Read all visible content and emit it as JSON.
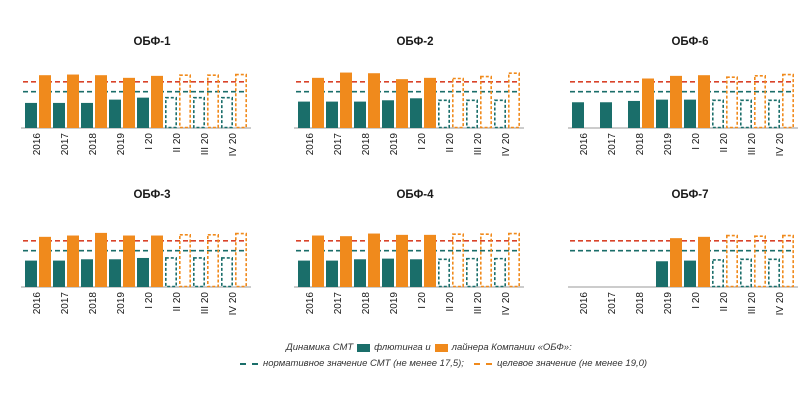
{
  "colors": {
    "smt": "#1a6e6a",
    "flooting": "#f08a1c",
    "norm": "#1a6e6a",
    "target": "#d9432a",
    "target_dash_orange": "#f08a1c"
  },
  "legend": {
    "line1_part1": "Динамика СМТ",
    "line1_part2": "флютинга и",
    "line1_part3": "лайнера Компании «ОБФ»:",
    "line2_part1": "нормативное значение СМТ (не менее 17,5);",
    "line2_part2": "целевое значение (не менее 19,0)"
  },
  "chart_data": [
    {
      "type": "bar",
      "title": "ОБФ-1",
      "categories": [
        "2016",
        "2017",
        "2018",
        "2019",
        "I 20",
        "II 20",
        "III 20",
        "IV 20"
      ],
      "series": [
        {
          "name": "Динамика СМТ флютинга и",
          "values": [
            15.8,
            15.8,
            15.8,
            16.3,
            16.6,
            null,
            null,
            null
          ]
        },
        {
          "name": "лайнера Компании «ОБФ»",
          "values": [
            20.0,
            20.1,
            20.0,
            19.6,
            19.9,
            null,
            null,
            null
          ]
        }
      ],
      "projected": {
        "smt": [
          null,
          null,
          null,
          null,
          null,
          16.6,
          16.6,
          16.6
        ],
        "liner": [
          null,
          null,
          null,
          null,
          null,
          20.0,
          20.0,
          20.1
        ]
      },
      "norm": 17.5,
      "target": 19.0
    },
    {
      "type": "bar",
      "title": "ОБФ-2",
      "categories": [
        "2016",
        "2017",
        "2018",
        "2019",
        "I 20",
        "II 20",
        "III 20",
        "IV 20"
      ],
      "series": [
        {
          "name": "Динамика СМТ флютинга и",
          "values": [
            16.0,
            16.0,
            16.0,
            16.2,
            16.5,
            null,
            null,
            null
          ]
        },
        {
          "name": "лайнера Компании «ОБФ»",
          "values": [
            19.6,
            20.4,
            20.3,
            19.4,
            19.6,
            null,
            null,
            null
          ]
        }
      ],
      "projected": {
        "smt": [
          null,
          null,
          null,
          null,
          null,
          16.2,
          16.2,
          16.2
        ],
        "liner": [
          null,
          null,
          null,
          null,
          null,
          19.5,
          19.8,
          20.3
        ]
      },
      "norm": 17.5,
      "target": 19.0
    },
    {
      "type": "bar",
      "title": "ОБФ-6",
      "categories": [
        "2016",
        "2017",
        "2018",
        "2019",
        "I 20",
        "II 20",
        "III 20",
        "IV 20"
      ],
      "series": [
        {
          "name": "Динамика СМТ флютинга и",
          "values": [
            15.9,
            15.9,
            16.1,
            16.3,
            16.3,
            null,
            null,
            null
          ]
        },
        {
          "name": "лайнера Компании «ОБФ»",
          "values": [
            null,
            null,
            19.5,
            19.9,
            20.0,
            null,
            null,
            null
          ]
        }
      ],
      "projected": {
        "smt": [
          null,
          null,
          null,
          null,
          null,
          16.2,
          16.2,
          16.2
        ],
        "liner": [
          null,
          null,
          null,
          null,
          null,
          19.7,
          19.9,
          20.1
        ]
      },
      "norm": 17.5,
      "target": 19.0
    },
    {
      "type": "bar",
      "title": "ОБФ-3",
      "categories": [
        "2016",
        "2017",
        "2018",
        "2019",
        "I 20",
        "II 20",
        "III 20",
        "IV 20"
      ],
      "series": [
        {
          "name": "Динамика СМТ флютинга и",
          "values": [
            16.0,
            16.0,
            16.2,
            16.2,
            16.4,
            null,
            null,
            null
          ]
        },
        {
          "name": "лайнера Компании «ОБФ»",
          "values": [
            19.6,
            19.8,
            20.2,
            19.8,
            19.8,
            null,
            null,
            null
          ]
        }
      ],
      "projected": {
        "smt": [
          null,
          null,
          null,
          null,
          null,
          16.4,
          16.4,
          16.4
        ],
        "liner": [
          null,
          null,
          null,
          null,
          null,
          19.9,
          19.9,
          20.1
        ]
      },
      "norm": 17.5,
      "target": 19.0
    },
    {
      "type": "bar",
      "title": "ОБФ-4",
      "categories": [
        "2016",
        "2017",
        "2018",
        "2019",
        "I 20",
        "II 20",
        "III 20",
        "IV 20"
      ],
      "series": [
        {
          "name": "Динамика СМТ флютинга и",
          "values": [
            16.0,
            16.0,
            16.2,
            16.3,
            16.2,
            null,
            null,
            null
          ]
        },
        {
          "name": "лайнера Компании «ОБФ»",
          "values": [
            19.8,
            19.7,
            20.1,
            19.9,
            19.9,
            null,
            null,
            null
          ]
        }
      ],
      "projected": {
        "smt": [
          null,
          null,
          null,
          null,
          null,
          16.2,
          16.3,
          16.3
        ],
        "liner": [
          null,
          null,
          null,
          null,
          null,
          20.0,
          20.0,
          20.1
        ]
      },
      "norm": 17.5,
      "target": 19.0
    },
    {
      "type": "bar",
      "title": "ОБФ-7",
      "categories": [
        "2016",
        "2017",
        "2018",
        "2019",
        "I 20",
        "II 20",
        "III 20",
        "IV 20"
      ],
      "series": [
        {
          "name": "Динамика СМТ флютинга и",
          "values": [
            null,
            null,
            null,
            15.9,
            16.0,
            null,
            null,
            null
          ]
        },
        {
          "name": "лайнера Компании «ОБФ»",
          "values": [
            null,
            null,
            null,
            19.4,
            19.6,
            null,
            null,
            null
          ]
        }
      ],
      "projected": {
        "smt": [
          null,
          null,
          null,
          null,
          null,
          16.1,
          16.2,
          16.2
        ],
        "liner": [
          null,
          null,
          null,
          null,
          null,
          19.8,
          19.7,
          19.8
        ]
      },
      "norm": 17.5,
      "target": 19.0
    }
  ]
}
